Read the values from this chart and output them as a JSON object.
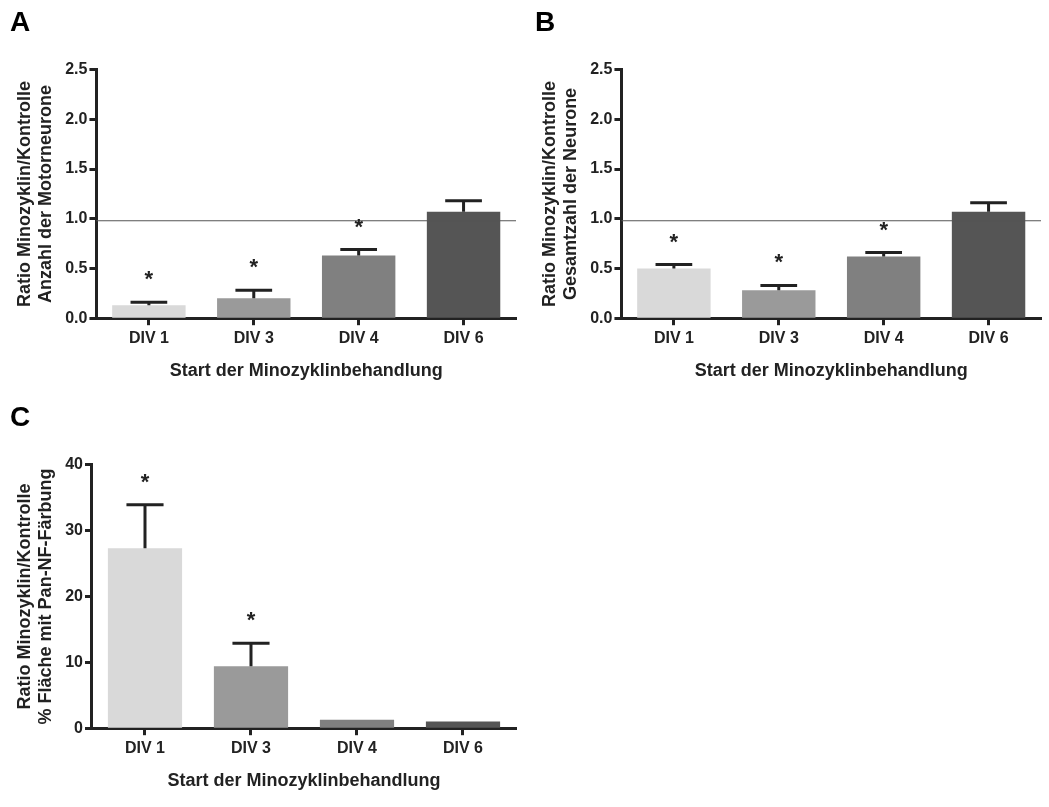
{
  "chart_data": [
    {
      "type": "bar",
      "title": "A",
      "xlabel": "Start der Minozyklinbehandlung",
      "ylabel": "Ratio Minozyklin/Kontrolle\nAnzahl der Motorneurone",
      "categories": [
        "DIV 1",
        "DIV 3",
        "DIV 4",
        "DIV 6"
      ],
      "values": [
        0.13,
        0.2,
        0.63,
        1.07
      ],
      "errors": [
        0.03,
        0.08,
        0.06,
        0.11
      ],
      "colors": [
        "#d9d9d9",
        "#9a9a9a",
        "#808080",
        "#555555"
      ],
      "ylim": [
        0,
        2.5
      ],
      "yticks": [
        {
          "value": 0,
          "label": "0.0"
        },
        {
          "value": 0.5,
          "label": "0.5"
        },
        {
          "value": 1,
          "label": "1.0"
        },
        {
          "value": 1.5,
          "label": "1.5"
        },
        {
          "value": 2,
          "label": "2.0"
        },
        {
          "value": 2.5,
          "label": "2.5"
        }
      ],
      "grid": false,
      "legend": false,
      "ref_lines": [
        {
          "axis": "y",
          "value": 0.98,
          "color": "#555555"
        }
      ],
      "annotations": [
        {
          "text": "*",
          "x": "DIV 1",
          "y": 0.16
        },
        {
          "text": "*",
          "x": "DIV 3",
          "y": 0.28
        },
        {
          "text": "*",
          "x": "DIV 4",
          "y": 0.69
        }
      ]
    },
    {
      "type": "bar",
      "title": "B",
      "xlabel": "Start der Minozyklinbehandlung",
      "ylabel": "Ratio Minozyklin/Kontrolle\nGesamtzahl der Neurone",
      "categories": [
        "DIV 1",
        "DIV 3",
        "DIV 4",
        "DIV 6"
      ],
      "values": [
        0.5,
        0.28,
        0.62,
        1.07
      ],
      "errors": [
        0.04,
        0.05,
        0.04,
        0.09
      ],
      "colors": [
        "#d9d9d9",
        "#9a9a9a",
        "#808080",
        "#555555"
      ],
      "ylim": [
        0,
        2.5
      ],
      "yticks": [
        {
          "value": 0,
          "label": "0.0"
        },
        {
          "value": 0.5,
          "label": "0.5"
        },
        {
          "value": 1,
          "label": "1.0"
        },
        {
          "value": 1.5,
          "label": "1.5"
        },
        {
          "value": 2,
          "label": "2.0"
        },
        {
          "value": 2.5,
          "label": "2.5"
        }
      ],
      "grid": false,
      "legend": false,
      "ref_lines": [
        {
          "axis": "y",
          "value": 0.98,
          "color": "#555555"
        }
      ],
      "annotations": [
        {
          "text": "*",
          "x": "DIV 1",
          "y": 0.54
        },
        {
          "text": "*",
          "x": "DIV 3",
          "y": 0.33
        },
        {
          "text": "*",
          "x": "DIV 4",
          "y": 0.66
        }
      ]
    },
    {
      "type": "bar",
      "title": "C",
      "xlabel": "Start der Minozyklinbehandlung",
      "ylabel": "Ratio Minozyklin/Kontrolle\n% Fläche mit Pan-NF-Färbung",
      "categories": [
        "DIV 1",
        "DIV 3",
        "DIV 4",
        "DIV 6"
      ],
      "values": [
        27.3,
        9.4,
        1.3,
        1.0
      ],
      "errors": [
        6.6,
        3.5,
        null,
        null
      ],
      "colors": [
        "#d9d9d9",
        "#9a9a9a",
        "#808080",
        "#555555"
      ],
      "ylim": [
        0,
        40
      ],
      "yticks": [
        0,
        10,
        20,
        30,
        40
      ],
      "grid": false,
      "legend": false,
      "annotations": [
        {
          "text": "*",
          "x": "DIV 1",
          "y": 33.9
        },
        {
          "text": "*",
          "x": "DIV 3",
          "y": 12.9
        }
      ]
    }
  ]
}
